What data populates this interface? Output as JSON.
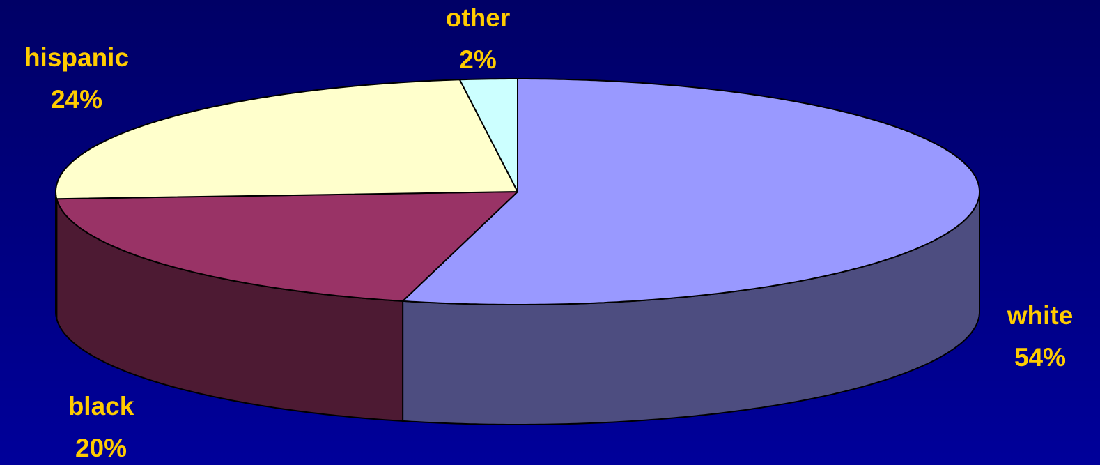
{
  "chart_data": {
    "type": "pie",
    "style": "3d",
    "categories": [
      "white",
      "black",
      "hispanic",
      "other"
    ],
    "values": [
      54,
      20,
      24,
      2
    ],
    "value_labels": [
      "54%",
      "20%",
      "24%",
      "2%"
    ],
    "colors": [
      "#9999ff",
      "#993366",
      "#ffffcc",
      "#ccffff"
    ]
  }
}
